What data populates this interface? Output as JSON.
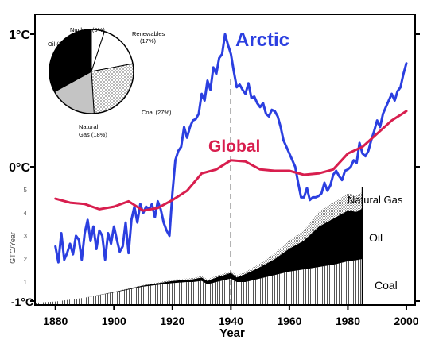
{
  "chart_data": [
    {
      "type": "line",
      "xlabel": "Year",
      "ylabel": "",
      "xlim": [
        1873,
        2003
      ],
      "ylim": [
        -1,
        1.22
      ],
      "x_ticks": [
        "1880",
        "1900",
        "1920",
        "1940",
        "1960",
        "1980",
        "2000"
      ],
      "x_tick_values": [
        1880,
        1900,
        1920,
        1940,
        1960,
        1980,
        2000
      ],
      "y_ticks": [
        "1°C",
        "0°C",
        "-1°C"
      ],
      "y_tick_values": [
        1,
        0,
        -1
      ],
      "reference_line_x": 1940,
      "colors": {
        "Arctic": "#2b3fe0",
        "Global": "#d81e4e",
        "axis": "#000000"
      },
      "series": [
        {
          "name": "Arctic",
          "x": [
            1880,
            1881,
            1882,
            1883,
            1884,
            1885,
            1886,
            1887,
            1888,
            1889,
            1890,
            1891,
            1892,
            1893,
            1894,
            1895,
            1896,
            1897,
            1898,
            1899,
            1900,
            1901,
            1902,
            1903,
            1904,
            1905,
            1906,
            1907,
            1908,
            1909,
            1910,
            1911,
            1912,
            1913,
            1914,
            1915,
            1916,
            1917,
            1918,
            1919,
            1920,
            1921,
            1922,
            1923,
            1924,
            1925,
            1926,
            1927,
            1928,
            1929,
            1930,
            1931,
            1932,
            1933,
            1934,
            1935,
            1936,
            1937,
            1938,
            1939,
            1940,
            1941,
            1942,
            1943,
            1944,
            1945,
            1946,
            1947,
            1948,
            1949,
            1950,
            1951,
            1952,
            1953,
            1954,
            1955,
            1956,
            1957,
            1958,
            1959,
            1960,
            1961,
            1962,
            1963,
            1964,
            1965,
            1966,
            1967,
            1968,
            1969,
            1970,
            1971,
            1972,
            1973,
            1974,
            1975,
            1976,
            1977,
            1978,
            1979,
            1980,
            1981,
            1982,
            1983,
            1984,
            1985,
            1986,
            1987,
            1988,
            1989,
            1990,
            1991,
            1992,
            1993,
            1994,
            1995,
            1996,
            1997,
            1998,
            1999,
            2000
          ],
          "values": [
            -0.6,
            -0.72,
            -0.5,
            -0.7,
            -0.65,
            -0.58,
            -0.66,
            -0.52,
            -0.55,
            -0.7,
            -0.5,
            -0.4,
            -0.56,
            -0.45,
            -0.62,
            -0.48,
            -0.52,
            -0.7,
            -0.5,
            -0.58,
            -0.45,
            -0.55,
            -0.64,
            -0.6,
            -0.42,
            -0.65,
            -0.4,
            -0.3,
            -0.42,
            -0.28,
            -0.35,
            -0.3,
            -0.32,
            -0.28,
            -0.38,
            -0.26,
            -0.32,
            -0.42,
            -0.48,
            -0.52,
            -0.2,
            0.05,
            0.12,
            0.15,
            0.3,
            0.22,
            0.3,
            0.35,
            0.36,
            0.4,
            0.55,
            0.5,
            0.65,
            0.58,
            0.75,
            0.7,
            0.82,
            0.85,
            1.0,
            0.92,
            0.85,
            0.72,
            0.6,
            0.62,
            0.58,
            0.55,
            0.63,
            0.52,
            0.53,
            0.48,
            0.45,
            0.48,
            0.4,
            0.38,
            0.43,
            0.42,
            0.38,
            0.3,
            0.2,
            0.15,
            0.1,
            0.05,
            0.0,
            -0.12,
            -0.23,
            -0.23,
            -0.16,
            -0.25,
            -0.23,
            -0.23,
            -0.22,
            -0.2,
            -0.12,
            -0.18,
            -0.14,
            -0.06,
            -0.03,
            -0.07,
            -0.1,
            -0.03,
            -0.02,
            0.0,
            0.05,
            0.03,
            0.18,
            0.1,
            0.08,
            0.12,
            0.2,
            0.27,
            0.35,
            0.3,
            0.4,
            0.45,
            0.5,
            0.55,
            0.5,
            0.57,
            0.6,
            0.7,
            0.78
          ]
        },
        {
          "name": "Global",
          "x": [
            1880,
            1885,
            1890,
            1895,
            1900,
            1905,
            1910,
            1915,
            1920,
            1925,
            1930,
            1935,
            1940,
            1945,
            1950,
            1955,
            1960,
            1965,
            1970,
            1975,
            1980,
            1985,
            1990,
            1995,
            2000
          ],
          "values": [
            -0.24,
            -0.27,
            -0.28,
            -0.32,
            -0.3,
            -0.26,
            -0.33,
            -0.31,
            -0.25,
            -0.18,
            -0.05,
            -0.02,
            0.05,
            0.04,
            -0.02,
            -0.03,
            -0.03,
            -0.06,
            -0.05,
            -0.02,
            0.1,
            0.15,
            0.25,
            0.35,
            0.42
          ]
        }
      ]
    },
    {
      "type": "area",
      "ylabel": "GTC/Year",
      "xlim": [
        1873,
        2003
      ],
      "ylim": [
        0,
        5.2
      ],
      "y_ticks": [
        "1",
        "2",
        "3",
        "4",
        "5"
      ],
      "y_tick_values": [
        1,
        2,
        3,
        4,
        5
      ],
      "stacked": true,
      "x": [
        1873,
        1880,
        1890,
        1900,
        1910,
        1920,
        1925,
        1927,
        1930,
        1932,
        1935,
        1940,
        1942,
        1945,
        1950,
        1955,
        1960,
        1965,
        1970,
        1975,
        1980,
        1983,
        1985
      ],
      "series": [
        {
          "name": "Coal",
          "values": [
            0.1,
            0.15,
            0.32,
            0.55,
            0.8,
            0.95,
            1.0,
            1.0,
            1.05,
            0.9,
            1.0,
            1.15,
            1.0,
            1.0,
            1.15,
            1.3,
            1.45,
            1.55,
            1.65,
            1.75,
            1.9,
            1.95,
            2.0
          ]
        },
        {
          "name": "Oil",
          "values": [
            0.0,
            0.0,
            0.0,
            0.02,
            0.05,
            0.1,
            0.1,
            0.12,
            0.15,
            0.15,
            0.2,
            0.25,
            0.2,
            0.35,
            0.5,
            0.7,
            1.0,
            1.25,
            1.75,
            2.0,
            2.2,
            2.1,
            2.2
          ]
        },
        {
          "name": "Natural Gas",
          "values": [
            0.0,
            0.0,
            0.0,
            0.01,
            0.02,
            0.05,
            0.05,
            0.05,
            0.06,
            0.06,
            0.07,
            0.08,
            0.08,
            0.1,
            0.15,
            0.25,
            0.35,
            0.45,
            0.65,
            0.7,
            0.75,
            0.7,
            0.7
          ]
        }
      ],
      "colors": {
        "Coal": "#d9d9d9",
        "Oil": "#000000",
        "Natural Gas": "#bdbdbd"
      }
    },
    {
      "type": "pie",
      "labels": [
        "Nuclear (5%)",
        "Renewables (17%)",
        "Coal (27%)",
        "Natural Gas (18%)",
        "Oil (33%)"
      ],
      "values": [
        5,
        17,
        27,
        18,
        33
      ],
      "colors": [
        "#ffffff",
        "#ffffff",
        "#dddddd",
        "#c8c8c8",
        "#000000"
      ]
    }
  ]
}
